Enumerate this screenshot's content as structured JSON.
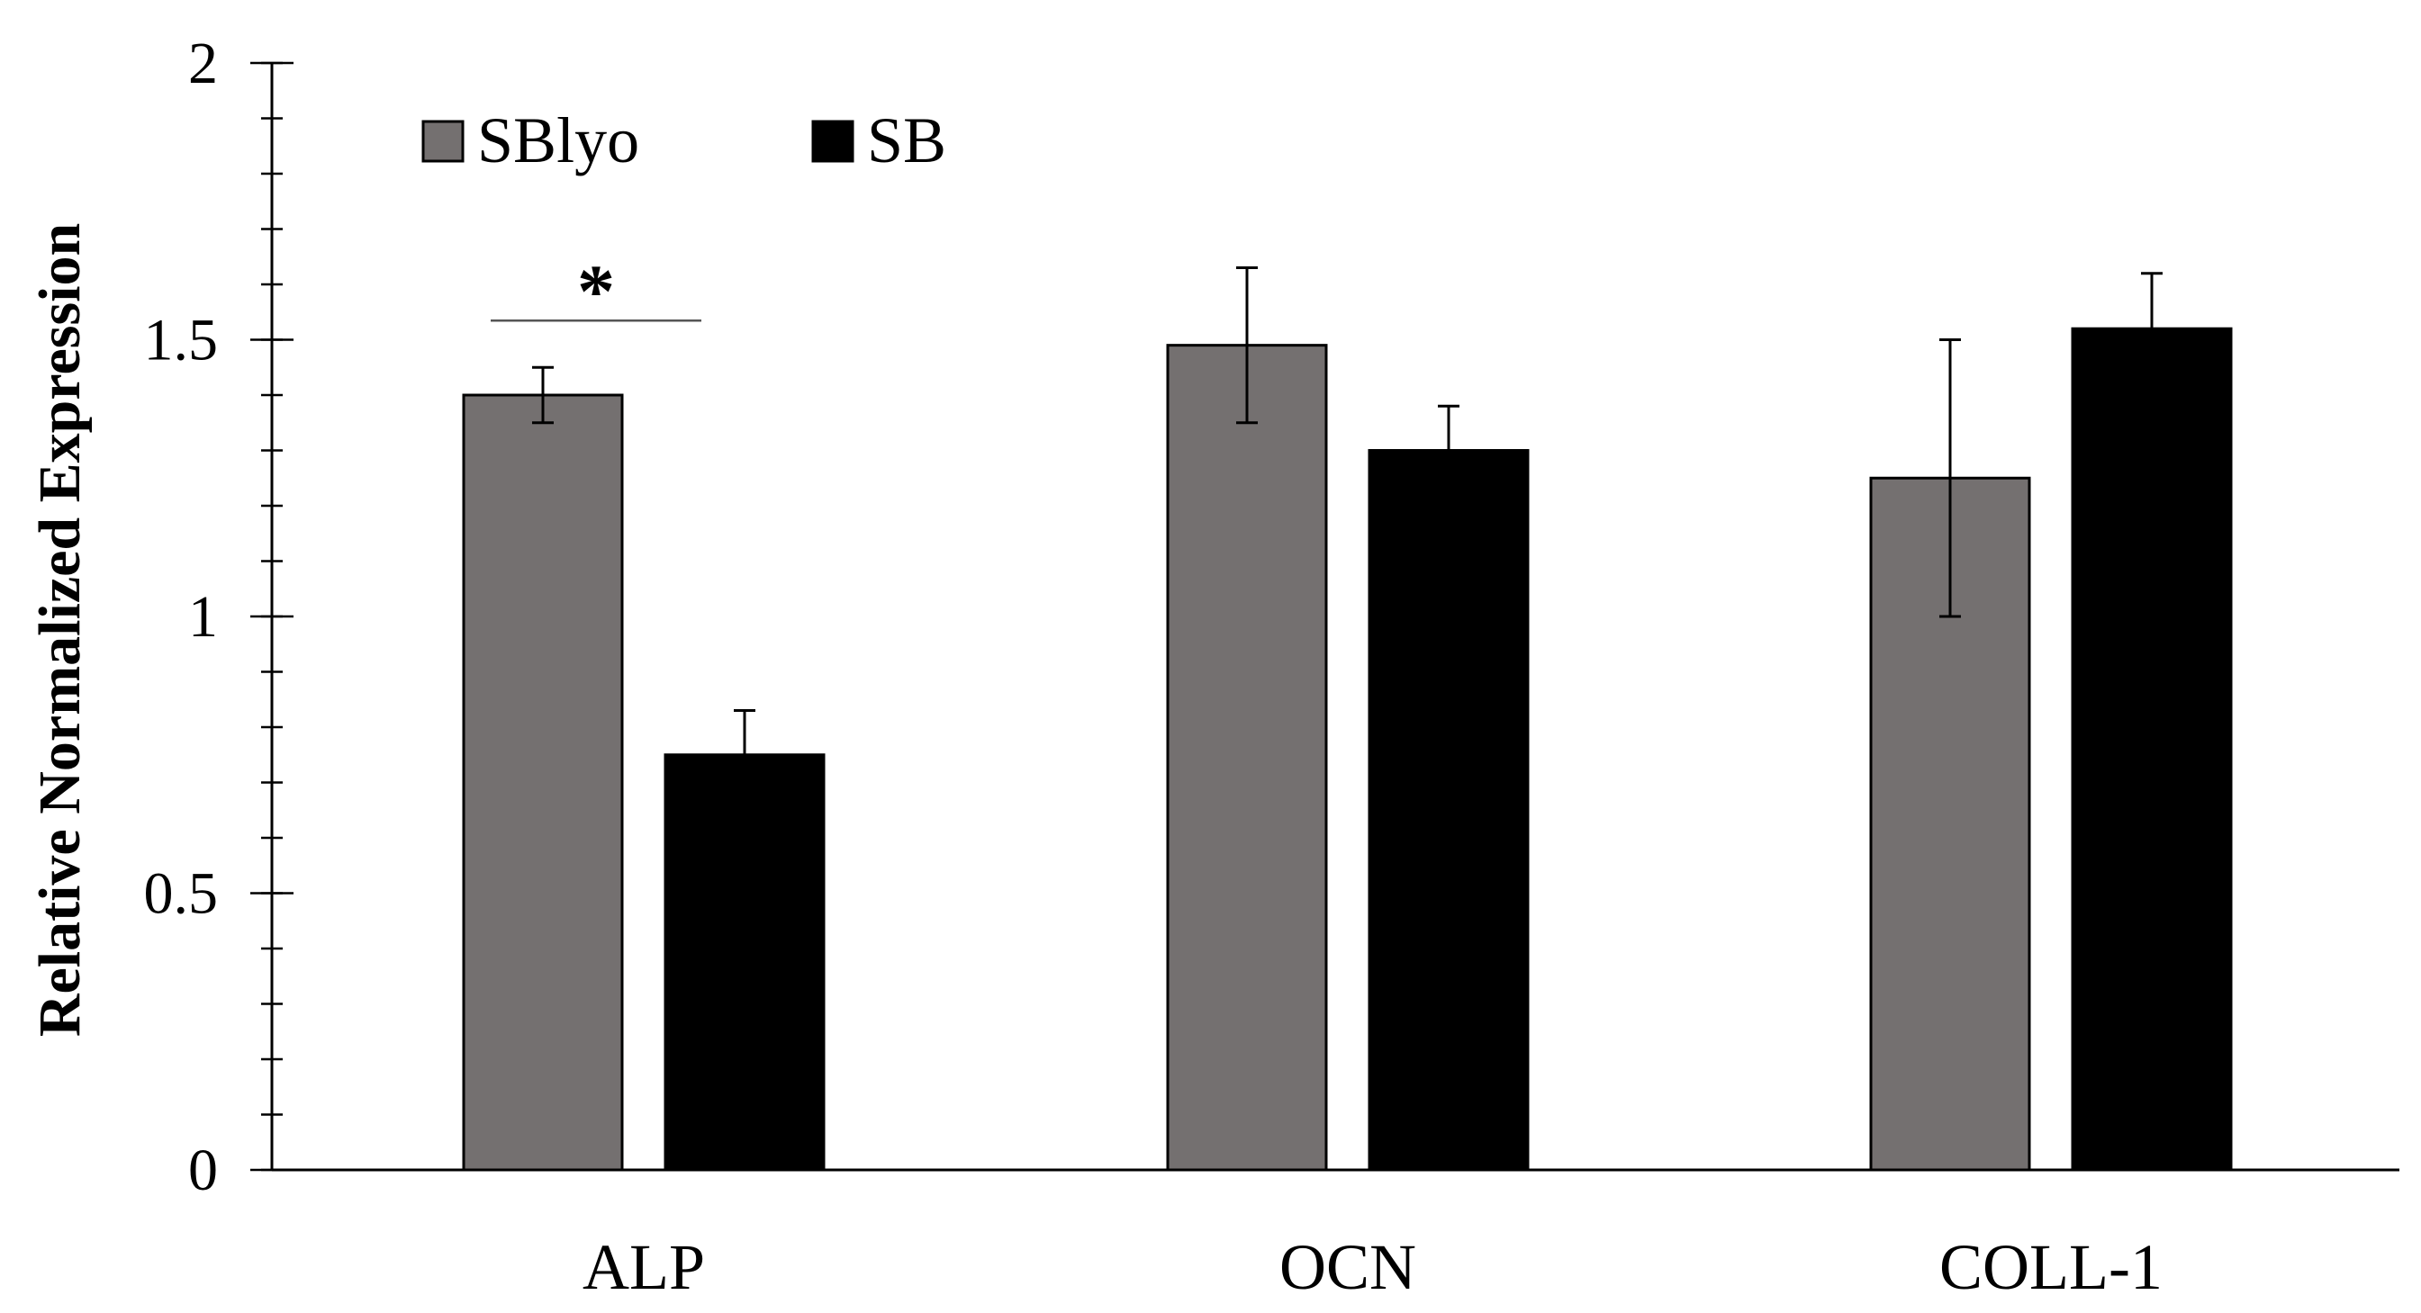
{
  "chart_data": {
    "type": "bar",
    "title": "",
    "xlabel": "",
    "ylabel": "Relative Normalized Expression",
    "ylim": [
      0,
      2
    ],
    "yticks": [
      0,
      0.5,
      1,
      1.5,
      2
    ],
    "ytick_labels": [
      "0",
      "0.5",
      "1",
      "1.5",
      "2"
    ],
    "minor_tick_step": 0.1,
    "grid": false,
    "legend_position": "top-left",
    "categories": [
      "ALP",
      "OCN",
      "COLL-1"
    ],
    "series": [
      {
        "name": "SBlyo",
        "color": "#747070",
        "values": [
          1.4,
          1.49,
          1.25
        ],
        "errors": [
          0.05,
          0.14,
          0.25
        ]
      },
      {
        "name": "SB",
        "color": "#000000",
        "values": [
          0.75,
          1.3,
          1.52
        ],
        "errors": [
          0.08,
          0.08,
          0.1
        ]
      }
    ],
    "annotations": [
      {
        "text": "*",
        "category": "ALP",
        "type": "significance"
      }
    ]
  }
}
